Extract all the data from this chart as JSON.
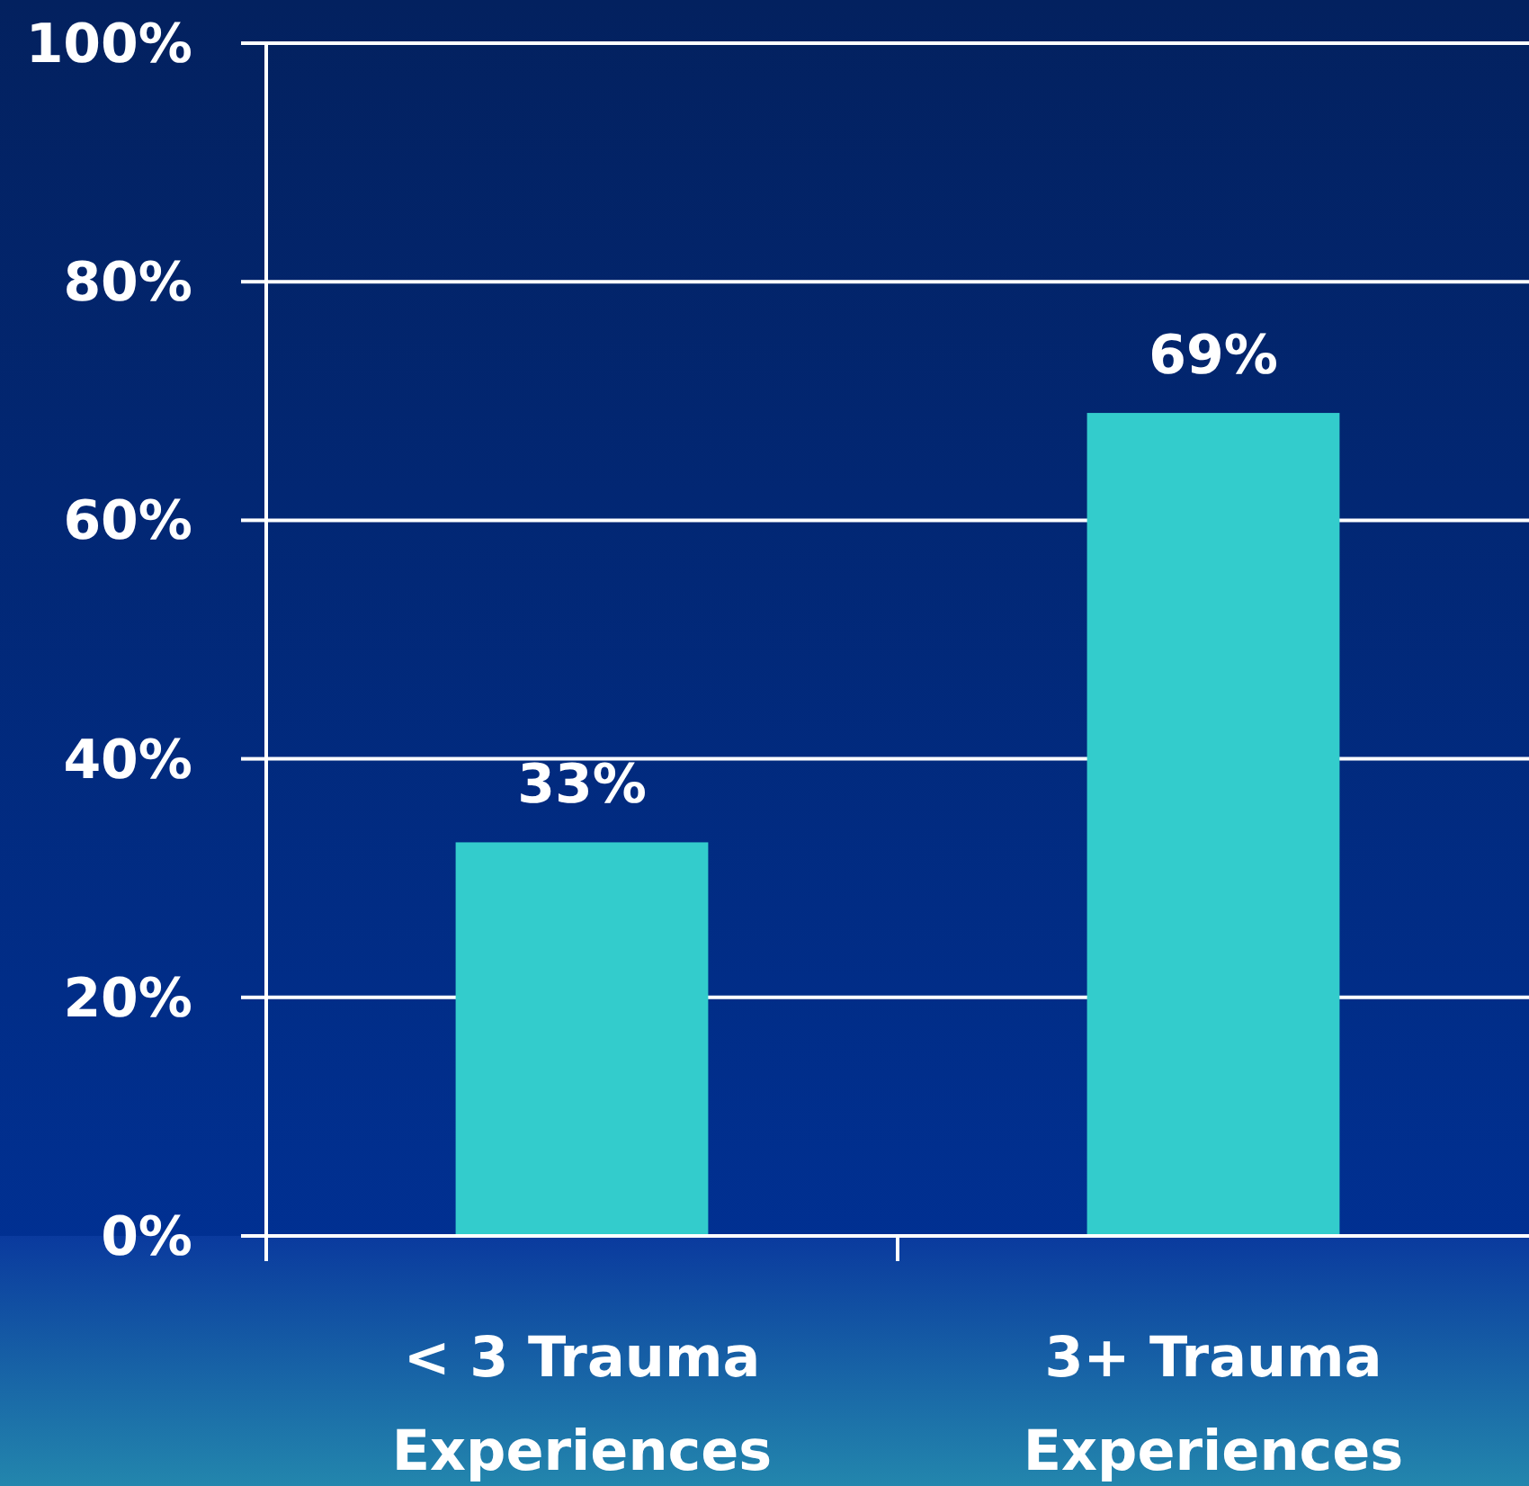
{
  "chart_data": {
    "type": "bar",
    "categories": [
      "< 3 Trauma Experiences",
      "3+ Trauma Experiences"
    ],
    "values": [
      33,
      69
    ],
    "color": "#33cccc",
    "value_labels": [
      "33%",
      "69%"
    ],
    "ylim": [
      0,
      100
    ],
    "yticks": [
      {
        "value": 0,
        "label": "0%"
      },
      {
        "value": 20,
        "label": "20%"
      },
      {
        "value": 40,
        "label": "40%"
      },
      {
        "value": 60,
        "label": "60%"
      },
      {
        "value": 80,
        "label": "80%"
      },
      {
        "value": 100,
        "label": "100%"
      }
    ],
    "grid": "y"
  }
}
